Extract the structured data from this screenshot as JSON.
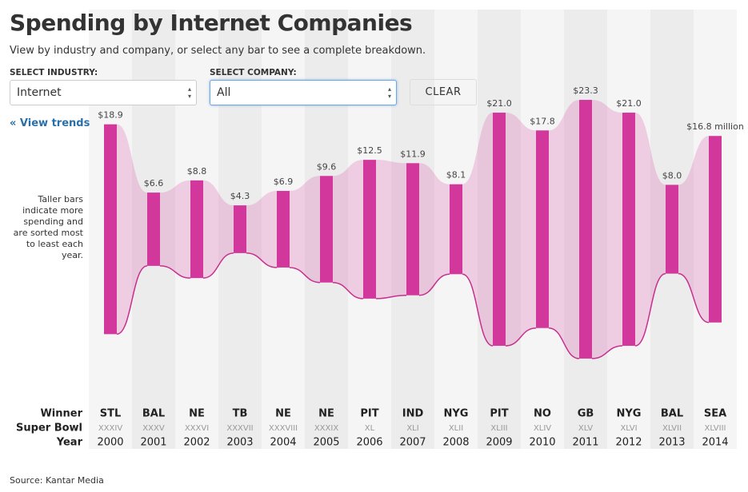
{
  "header": {
    "title": "Spending by Internet Companies",
    "subtitle": "View by industry and company, or select any bar to see a complete breakdown."
  },
  "controls": {
    "industry_label": "SELECT INDUSTRY:",
    "industry_value": "Internet",
    "company_label": "SELECT COMPANY:",
    "company_value": "All",
    "clear": "CLEAR",
    "view_trends": "« View trends"
  },
  "note": "Taller bars indicate more spending and are sorted most to least each year.",
  "chart_data": {
    "type": "bar",
    "categories": [
      "2000",
      "2001",
      "2002",
      "2003",
      "2004",
      "2005",
      "2006",
      "2007",
      "2008",
      "2009",
      "2010",
      "2011",
      "2012",
      "2013",
      "2014"
    ],
    "winners": [
      "STL",
      "BAL",
      "NE",
      "TB",
      "NE",
      "NE",
      "PIT",
      "IND",
      "NYG",
      "PIT",
      "NO",
      "GB",
      "NYG",
      "BAL",
      "SEA"
    ],
    "super_bowls": [
      "XXXIV",
      "XXXV",
      "XXXVI",
      "XXXVII",
      "XXXVIII",
      "XXXIX",
      "XL",
      "XLI",
      "XLII",
      "XLIII",
      "XLIV",
      "XLV",
      "XLVI",
      "XLVII",
      "XLVIII"
    ],
    "row_labels": {
      "winner": "Winner",
      "super_bowl": "Super Bowl",
      "year": "Year"
    },
    "values": [
      18.9,
      6.6,
      8.8,
      4.3,
      6.9,
      9.6,
      12.5,
      11.9,
      8.1,
      21.0,
      17.8,
      23.3,
      21.0,
      8.0,
      16.8
    ],
    "value_labels": [
      "$18.9",
      "$6.6",
      "$8.8",
      "$4.3",
      "$6.9",
      "$9.6",
      "$12.5",
      "$11.9",
      "$8.1",
      "$21.0",
      "$17.8",
      "$23.3",
      "$21.0",
      "$8.0",
      "$16.8 million"
    ],
    "color": "#d2379b"
  },
  "source": "Source: Kantar Media"
}
